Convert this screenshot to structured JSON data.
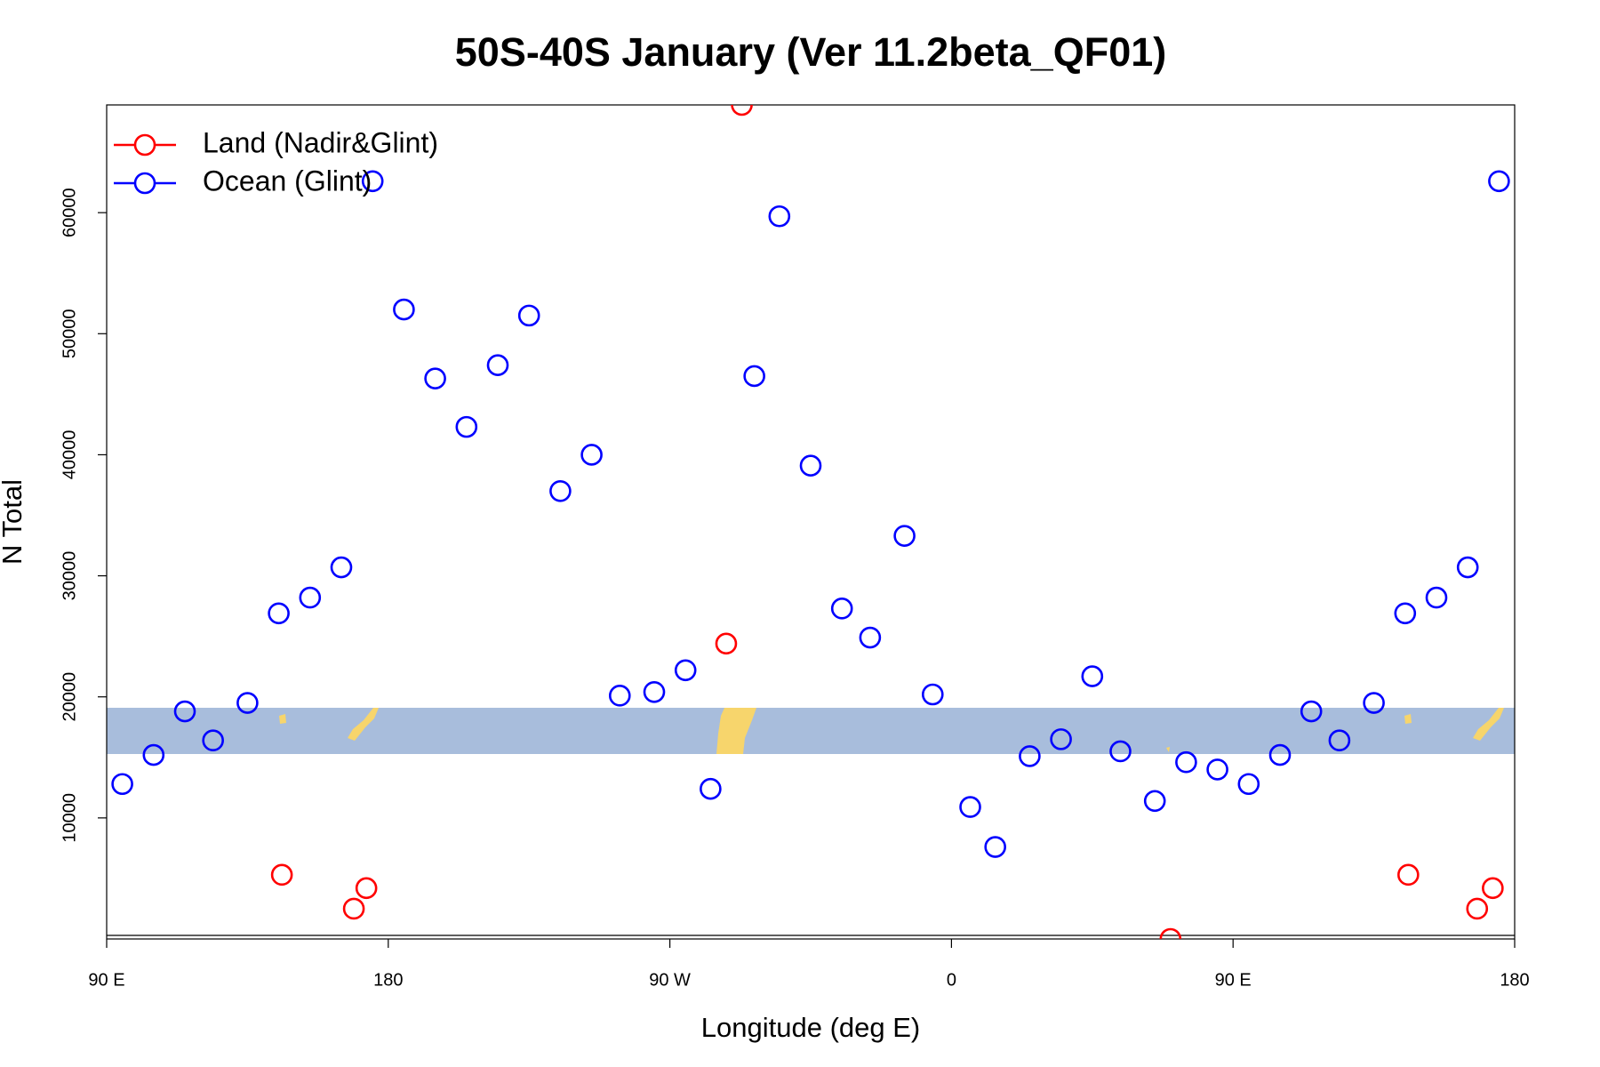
{
  "chart_data": {
    "type": "scatter",
    "title": "50S-40S January (Ver 11.2beta_QF01)",
    "x_label": "Longitude (deg E)",
    "y_label": "N Total",
    "xlim": [
      -270,
      180
    ],
    "xticks": [
      {
        "value": -270,
        "label": "90 E"
      },
      {
        "value": -180,
        "label": "180"
      },
      {
        "value": -90,
        "label": "90 W"
      },
      0,
      {
        "value": 90,
        "label": "90 E"
      },
      {
        "value": 180,
        "label": "180"
      }
    ],
    "ylim": [
      0,
      68900
    ],
    "yticks": [
      10000,
      20000,
      30000,
      40000,
      50000,
      60000
    ],
    "legend": "top-left",
    "series": [
      {
        "name": "Land (Nadir&Glint)",
        "color": "#ff0000",
        "x": [
          -214,
          -191,
          -187,
          -72,
          -67,
          70,
          146,
          168,
          173
        ],
        "values": [
          5300,
          2500,
          4200,
          24400,
          68900,
          0,
          5300,
          2500,
          4200
        ]
      },
      {
        "name": "Ocean (Glint)",
        "color": "#0000ff",
        "x": [
          -265,
          -255,
          -245,
          -236,
          -225,
          -215,
          -205,
          -195,
          -185,
          -175,
          -165,
          -155,
          -145,
          -135,
          -125,
          -115,
          -106,
          -95,
          -85,
          -77,
          -63,
          -55,
          -45,
          -35,
          -26,
          -15,
          -6,
          6,
          14,
          25,
          35,
          45,
          54,
          65,
          75,
          85,
          95,
          105,
          115,
          124,
          135,
          145,
          155,
          165,
          175
        ],
        "values": [
          12800,
          15200,
          18800,
          16400,
          19500,
          26900,
          28200,
          30700,
          62600,
          52000,
          46300,
          42300,
          47400,
          51500,
          37000,
          40000,
          20100,
          20400,
          22200,
          12400,
          46500,
          59700,
          39100,
          27300,
          24900,
          33300,
          20200,
          10900,
          7600,
          15100,
          16500,
          21700,
          15500,
          11400,
          14600,
          14000,
          12800,
          15200,
          18800,
          16400,
          19500,
          26900,
          28200,
          30700,
          62600
        ]
      }
    ]
  }
}
